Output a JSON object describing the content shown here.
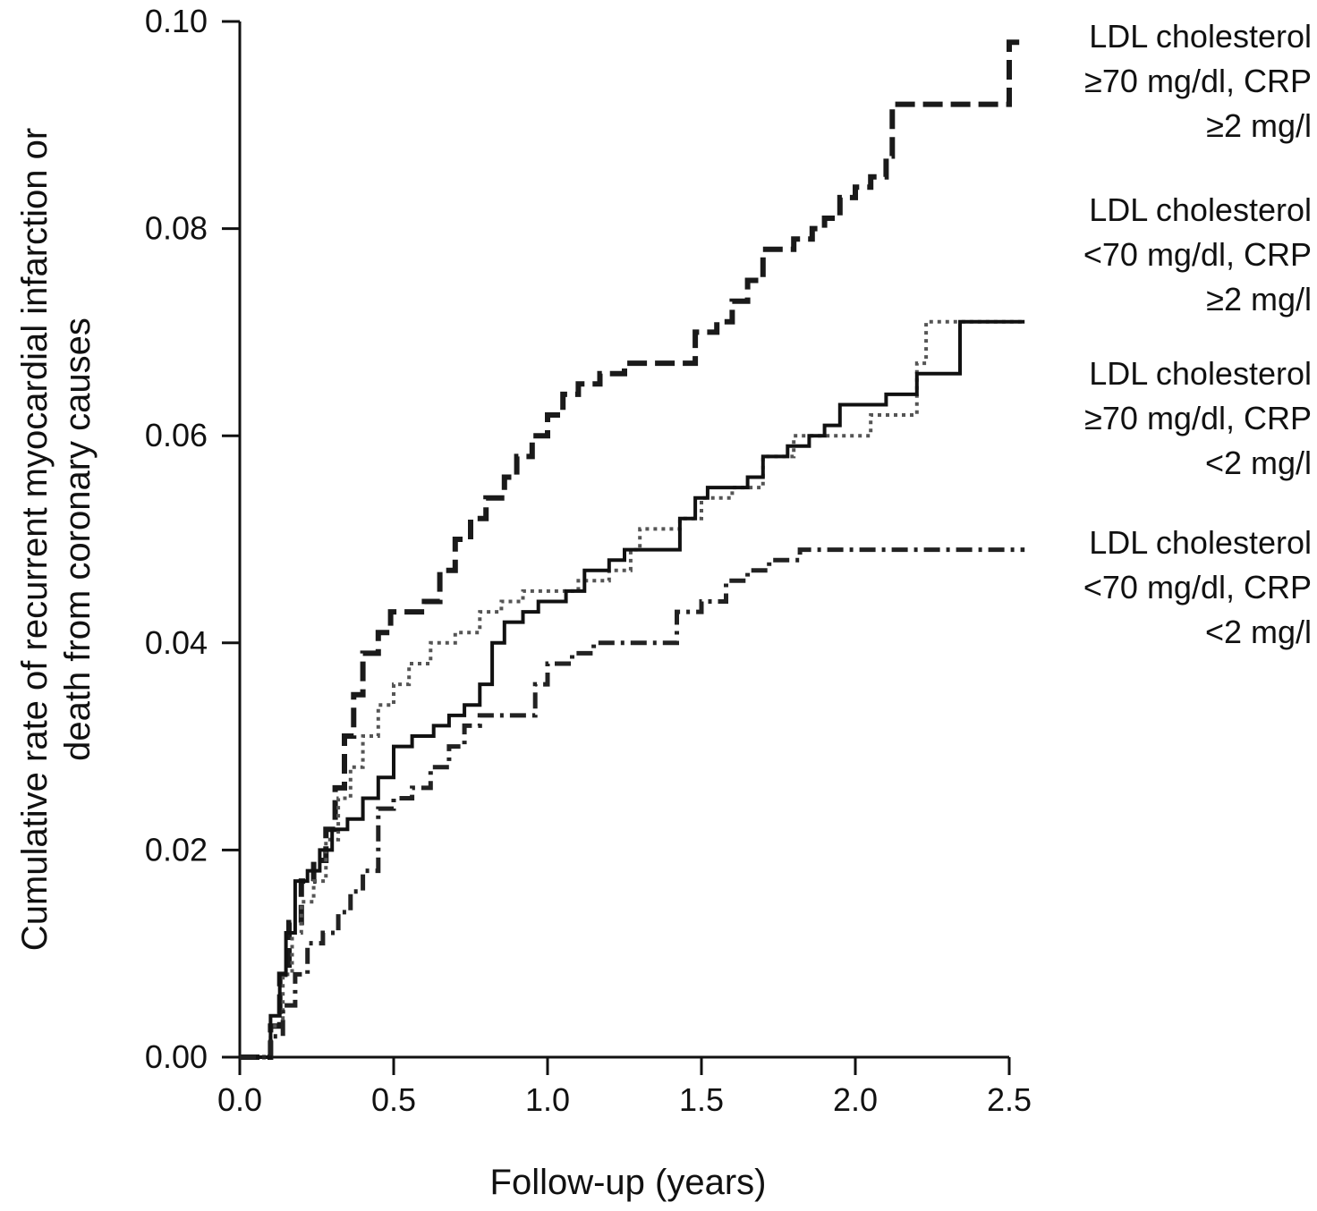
{
  "chart_data": {
    "type": "line",
    "xlabel": "Follow-up (years)",
    "ylabel_lines": [
      "Cumulative rate of recurrent myocardial infarction or",
      "death from coronary causes"
    ],
    "xlim": [
      0,
      2.5
    ],
    "ylim": [
      0,
      0.1
    ],
    "x_ticks": [
      "0.0",
      "0.5",
      "1.0",
      "1.5",
      "2.0",
      "2.5"
    ],
    "y_ticks": [
      "0.00",
      "0.02",
      "0.04",
      "0.06",
      "0.08",
      "0.10"
    ],
    "grid": false,
    "legend_placement": "right",
    "series": [
      {
        "name_lines": [
          "LDL cholesterol",
          "≥70 mg/dl, CRP",
          "≥2 mg/l"
        ],
        "style": "dashed",
        "points": [
          [
            0,
            0
          ],
          [
            0.08,
            0
          ],
          [
            0.1,
            0.003
          ],
          [
            0.13,
            0.008
          ],
          [
            0.16,
            0.013
          ],
          [
            0.2,
            0.017
          ],
          [
            0.24,
            0.019
          ],
          [
            0.28,
            0.022
          ],
          [
            0.31,
            0.026
          ],
          [
            0.34,
            0.031
          ],
          [
            0.37,
            0.035
          ],
          [
            0.4,
            0.039
          ],
          [
            0.45,
            0.041
          ],
          [
            0.49,
            0.043
          ],
          [
            0.55,
            0.043
          ],
          [
            0.6,
            0.044
          ],
          [
            0.65,
            0.047
          ],
          [
            0.7,
            0.05
          ],
          [
            0.75,
            0.052
          ],
          [
            0.8,
            0.054
          ],
          [
            0.86,
            0.056
          ],
          [
            0.9,
            0.058
          ],
          [
            0.95,
            0.06
          ],
          [
            1.0,
            0.062
          ],
          [
            1.05,
            0.064
          ],
          [
            1.1,
            0.065
          ],
          [
            1.17,
            0.066
          ],
          [
            1.25,
            0.067
          ],
          [
            1.3,
            0.067
          ],
          [
            1.43,
            0.067
          ],
          [
            1.48,
            0.07
          ],
          [
            1.55,
            0.071
          ],
          [
            1.6,
            0.073
          ],
          [
            1.65,
            0.075
          ],
          [
            1.7,
            0.078
          ],
          [
            1.75,
            0.078
          ],
          [
            1.8,
            0.079
          ],
          [
            1.86,
            0.08
          ],
          [
            1.9,
            0.081
          ],
          [
            1.95,
            0.083
          ],
          [
            2.0,
            0.084
          ],
          [
            2.05,
            0.085
          ],
          [
            2.1,
            0.087
          ],
          [
            2.12,
            0.092
          ],
          [
            2.3,
            0.092
          ],
          [
            2.48,
            0.092
          ],
          [
            2.5,
            0.098
          ],
          [
            2.55,
            0.098
          ]
        ]
      },
      {
        "name_lines": [
          "LDL cholesterol",
          "<70 mg/dl, CRP",
          "≥2 mg/l"
        ],
        "style": "dotted",
        "points": [
          [
            0,
            0
          ],
          [
            0.08,
            0
          ],
          [
            0.1,
            0.003
          ],
          [
            0.14,
            0.008
          ],
          [
            0.17,
            0.012
          ],
          [
            0.2,
            0.015
          ],
          [
            0.24,
            0.017
          ],
          [
            0.28,
            0.021
          ],
          [
            0.32,
            0.025
          ],
          [
            0.36,
            0.028
          ],
          [
            0.4,
            0.031
          ],
          [
            0.45,
            0.034
          ],
          [
            0.5,
            0.036
          ],
          [
            0.55,
            0.038
          ],
          [
            0.62,
            0.04
          ],
          [
            0.7,
            0.041
          ],
          [
            0.78,
            0.043
          ],
          [
            0.85,
            0.044
          ],
          [
            0.92,
            0.045
          ],
          [
            1.0,
            0.045
          ],
          [
            1.1,
            0.046
          ],
          [
            1.2,
            0.047
          ],
          [
            1.27,
            0.049
          ],
          [
            1.3,
            0.051
          ],
          [
            1.37,
            0.051
          ],
          [
            1.43,
            0.052
          ],
          [
            1.5,
            0.054
          ],
          [
            1.6,
            0.055
          ],
          [
            1.7,
            0.058
          ],
          [
            1.8,
            0.06
          ],
          [
            1.9,
            0.06
          ],
          [
            2.03,
            0.06
          ],
          [
            2.05,
            0.062
          ],
          [
            2.16,
            0.062
          ],
          [
            2.2,
            0.067
          ],
          [
            2.23,
            0.071
          ],
          [
            2.55,
            0.071
          ]
        ]
      },
      {
        "name_lines": [
          "LDL cholesterol",
          "≥70 mg/dl, CRP",
          "<2 mg/l"
        ],
        "style": "solid",
        "points": [
          [
            0,
            0
          ],
          [
            0.08,
            0
          ],
          [
            0.1,
            0.004
          ],
          [
            0.13,
            0.008
          ],
          [
            0.15,
            0.012
          ],
          [
            0.18,
            0.017
          ],
          [
            0.22,
            0.018
          ],
          [
            0.26,
            0.02
          ],
          [
            0.3,
            0.022
          ],
          [
            0.35,
            0.023
          ],
          [
            0.4,
            0.025
          ],
          [
            0.45,
            0.027
          ],
          [
            0.5,
            0.03
          ],
          [
            0.56,
            0.031
          ],
          [
            0.63,
            0.032
          ],
          [
            0.68,
            0.033
          ],
          [
            0.73,
            0.034
          ],
          [
            0.78,
            0.036
          ],
          [
            0.82,
            0.04
          ],
          [
            0.86,
            0.042
          ],
          [
            0.92,
            0.043
          ],
          [
            0.97,
            0.044
          ],
          [
            1.06,
            0.045
          ],
          [
            1.12,
            0.047
          ],
          [
            1.2,
            0.048
          ],
          [
            1.25,
            0.049
          ],
          [
            1.38,
            0.049
          ],
          [
            1.43,
            0.052
          ],
          [
            1.48,
            0.054
          ],
          [
            1.52,
            0.055
          ],
          [
            1.6,
            0.055
          ],
          [
            1.65,
            0.056
          ],
          [
            1.7,
            0.058
          ],
          [
            1.78,
            0.059
          ],
          [
            1.85,
            0.06
          ],
          [
            1.9,
            0.061
          ],
          [
            1.95,
            0.063
          ],
          [
            2.06,
            0.063
          ],
          [
            2.1,
            0.064
          ],
          [
            2.17,
            0.064
          ],
          [
            2.2,
            0.066
          ],
          [
            2.32,
            0.066
          ],
          [
            2.34,
            0.071
          ],
          [
            2.55,
            0.071
          ]
        ]
      },
      {
        "name_lines": [
          "LDL cholesterol",
          "<70 mg/dl, CRP",
          "<2 mg/l"
        ],
        "style": "dash-dot",
        "points": [
          [
            0,
            0
          ],
          [
            0.08,
            0
          ],
          [
            0.1,
            0.002
          ],
          [
            0.14,
            0.005
          ],
          [
            0.18,
            0.008
          ],
          [
            0.22,
            0.011
          ],
          [
            0.27,
            0.012
          ],
          [
            0.32,
            0.014
          ],
          [
            0.36,
            0.016
          ],
          [
            0.4,
            0.018
          ],
          [
            0.45,
            0.024
          ],
          [
            0.5,
            0.025
          ],
          [
            0.56,
            0.026
          ],
          [
            0.62,
            0.028
          ],
          [
            0.68,
            0.03
          ],
          [
            0.73,
            0.032
          ],
          [
            0.78,
            0.033
          ],
          [
            0.9,
            0.033
          ],
          [
            0.96,
            0.036
          ],
          [
            1.0,
            0.038
          ],
          [
            1.08,
            0.039
          ],
          [
            1.15,
            0.04
          ],
          [
            1.25,
            0.04
          ],
          [
            1.35,
            0.04
          ],
          [
            1.42,
            0.043
          ],
          [
            1.5,
            0.044
          ],
          [
            1.58,
            0.046
          ],
          [
            1.65,
            0.047
          ],
          [
            1.72,
            0.048
          ],
          [
            1.78,
            0.048
          ],
          [
            1.82,
            0.049
          ],
          [
            2.0,
            0.049
          ],
          [
            2.55,
            0.049
          ]
        ]
      }
    ]
  }
}
